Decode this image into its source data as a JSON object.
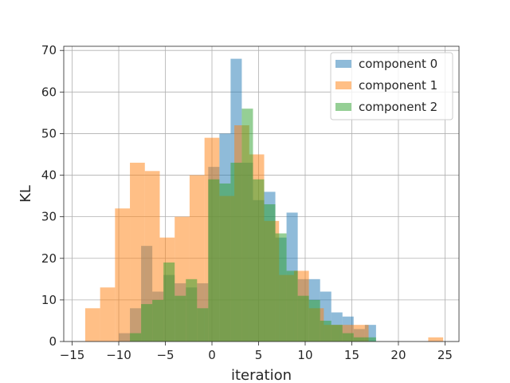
{
  "chart_data": {
    "type": "bar",
    "subtype": "overlapping-histogram",
    "title": "",
    "xlabel": "iteration",
    "ylabel": "KL",
    "xlim": [
      -15.9,
      26.5
    ],
    "ylim": [
      0,
      71
    ],
    "xticks": [
      -15,
      -10,
      -5,
      0,
      5,
      10,
      15,
      20,
      25
    ],
    "yticks": [
      0,
      10,
      20,
      30,
      40,
      50,
      60,
      70
    ],
    "grid": true,
    "legend": "top-right",
    "series": [
      {
        "name": "component 0",
        "color": "#1f77b4",
        "opacity": 0.5,
        "bins": [
          {
            "x0": -10.0,
            "x1": -8.8,
            "count": 2
          },
          {
            "x0": -8.8,
            "x1": -7.6,
            "count": 8
          },
          {
            "x0": -7.6,
            "x1": -6.4,
            "count": 23
          },
          {
            "x0": -6.4,
            "x1": -5.2,
            "count": 12
          },
          {
            "x0": -5.2,
            "x1": -4.0,
            "count": 16
          },
          {
            "x0": -4.0,
            "x1": -2.8,
            "count": 14
          },
          {
            "x0": -2.8,
            "x1": -1.6,
            "count": 13
          },
          {
            "x0": -1.6,
            "x1": -0.4,
            "count": 14
          },
          {
            "x0": -0.4,
            "x1": 0.8,
            "count": 42
          },
          {
            "x0": 0.8,
            "x1": 2.0,
            "count": 50
          },
          {
            "x0": 2.0,
            "x1": 3.2,
            "count": 68
          },
          {
            "x0": 3.2,
            "x1": 4.4,
            "count": 43
          },
          {
            "x0": 4.4,
            "x1": 5.6,
            "count": 34
          },
          {
            "x0": 5.6,
            "x1": 6.8,
            "count": 36
          },
          {
            "x0": 6.8,
            "x1": 8.0,
            "count": 25
          },
          {
            "x0": 8.0,
            "x1": 9.2,
            "count": 31
          },
          {
            "x0": 9.2,
            "x1": 10.4,
            "count": 15
          },
          {
            "x0": 10.4,
            "x1": 11.6,
            "count": 15
          },
          {
            "x0": 11.6,
            "x1": 12.8,
            "count": 12
          },
          {
            "x0": 12.8,
            "x1": 14.0,
            "count": 7
          },
          {
            "x0": 14.0,
            "x1": 15.2,
            "count": 6
          },
          {
            "x0": 15.2,
            "x1": 16.4,
            "count": 3
          },
          {
            "x0": 16.4,
            "x1": 17.6,
            "count": 4
          }
        ]
      },
      {
        "name": "component 1",
        "color": "#ff7f0e",
        "opacity": 0.5,
        "bins": [
          {
            "x0": -13.6,
            "x1": -12.0,
            "count": 8
          },
          {
            "x0": -12.0,
            "x1": -10.4,
            "count": 13
          },
          {
            "x0": -10.4,
            "x1": -8.8,
            "count": 32
          },
          {
            "x0": -8.8,
            "x1": -7.2,
            "count": 43
          },
          {
            "x0": -7.2,
            "x1": -5.6,
            "count": 41
          },
          {
            "x0": -5.6,
            "x1": -4.0,
            "count": 25
          },
          {
            "x0": -4.0,
            "x1": -2.4,
            "count": 30
          },
          {
            "x0": -2.4,
            "x1": -0.8,
            "count": 40
          },
          {
            "x0": -0.8,
            "x1": 0.8,
            "count": 49
          },
          {
            "x0": 0.8,
            "x1": 2.4,
            "count": 35
          },
          {
            "x0": 2.4,
            "x1": 4.0,
            "count": 52
          },
          {
            "x0": 4.0,
            "x1": 5.6,
            "count": 45
          },
          {
            "x0": 5.6,
            "x1": 7.2,
            "count": 29
          },
          {
            "x0": 7.2,
            "x1": 8.8,
            "count": 16
          },
          {
            "x0": 8.8,
            "x1": 10.4,
            "count": 17
          },
          {
            "x0": 10.4,
            "x1": 12.0,
            "count": 8
          },
          {
            "x0": 12.0,
            "x1": 13.6,
            "count": 4
          },
          {
            "x0": 13.6,
            "x1": 15.2,
            "count": 4
          },
          {
            "x0": 15.2,
            "x1": 16.8,
            "count": 4
          },
          {
            "x0": 16.8,
            "x1": 18.4,
            "count": 0
          },
          {
            "x0": 18.4,
            "x1": 20.0,
            "count": 0
          },
          {
            "x0": 20.0,
            "x1": 21.6,
            "count": 0
          },
          {
            "x0": 21.6,
            "x1": 23.2,
            "count": 0
          },
          {
            "x0": 23.2,
            "x1": 24.8,
            "count": 1
          }
        ]
      },
      {
        "name": "component 2",
        "color": "#2ca02c",
        "opacity": 0.5,
        "bins": [
          {
            "x0": -8.8,
            "x1": -7.6,
            "count": 2
          },
          {
            "x0": -7.6,
            "x1": -6.4,
            "count": 9
          },
          {
            "x0": -6.4,
            "x1": -5.2,
            "count": 10
          },
          {
            "x0": -5.2,
            "x1": -4.0,
            "count": 19
          },
          {
            "x0": -4.0,
            "x1": -2.8,
            "count": 11
          },
          {
            "x0": -2.8,
            "x1": -1.6,
            "count": 15
          },
          {
            "x0": -1.6,
            "x1": -0.4,
            "count": 8
          },
          {
            "x0": -0.4,
            "x1": 0.8,
            "count": 39
          },
          {
            "x0": 0.8,
            "x1": 2.0,
            "count": 38
          },
          {
            "x0": 2.0,
            "x1": 3.2,
            "count": 43
          },
          {
            "x0": 3.2,
            "x1": 4.4,
            "count": 56
          },
          {
            "x0": 4.4,
            "x1": 5.6,
            "count": 39
          },
          {
            "x0": 5.6,
            "x1": 6.8,
            "count": 33
          },
          {
            "x0": 6.8,
            "x1": 8.0,
            "count": 26
          },
          {
            "x0": 8.0,
            "x1": 9.2,
            "count": 17
          },
          {
            "x0": 9.2,
            "x1": 10.4,
            "count": 11
          },
          {
            "x0": 10.4,
            "x1": 11.6,
            "count": 10
          },
          {
            "x0": 11.6,
            "x1": 12.8,
            "count": 5
          },
          {
            "x0": 12.8,
            "x1": 14.0,
            "count": 4
          },
          {
            "x0": 14.0,
            "x1": 15.2,
            "count": 2
          },
          {
            "x0": 15.2,
            "x1": 16.4,
            "count": 1
          },
          {
            "x0": 16.4,
            "x1": 17.6,
            "count": 1
          }
        ]
      }
    ]
  }
}
